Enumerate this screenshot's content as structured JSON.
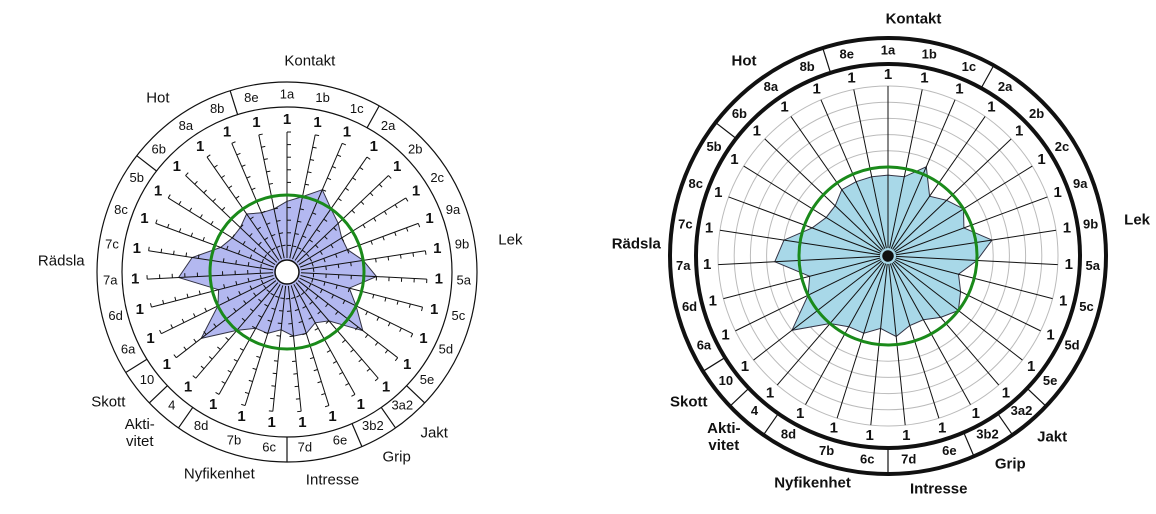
{
  "chart_data": [
    {
      "type": "radar",
      "rlim": [
        0,
        10
      ],
      "reference": 5,
      "color": "#b3b8f0",
      "reference_color": "#1a8a1a",
      "groups": [
        {
          "label": "Kontakt",
          "categories": [
            "8e",
            "1a",
            "1b",
            "1c"
          ]
        },
        {
          "label": "Lek",
          "categories": [
            "2a",
            "2b",
            "2c",
            "9a",
            "9b",
            "5a",
            "5c",
            "5d",
            "5e"
          ]
        },
        {
          "label": "Jakt",
          "categories": [
            "3a2"
          ]
        },
        {
          "label": "Grip",
          "categories": [
            "3b2"
          ]
        },
        {
          "label": "Intresse",
          "categories": [
            "6e",
            "7d"
          ]
        },
        {
          "label": "Nyfikenhet",
          "categories": [
            "6c",
            "7b",
            "8d"
          ]
        },
        {
          "label": "Akti-\nvitet",
          "categories": [
            "4"
          ]
        },
        {
          "label": "Skott",
          "categories": [
            "10"
          ]
        },
        {
          "label": "Rädsla",
          "categories": [
            "6a",
            "6d",
            "7a",
            "7c",
            "8c",
            "5b"
          ]
        },
        {
          "label": "Hot",
          "categories": [
            "6b",
            "8a",
            "8b"
          ]
        }
      ],
      "values": [
        4,
        4.5,
        5,
        6,
        5,
        4.5,
        4,
        4,
        5,
        6,
        4,
        5,
        6.5,
        4,
        3.5,
        4,
        4,
        3.5,
        4,
        4,
        5,
        7.5,
        5,
        4.5,
        7.5,
        6.5,
        4.5,
        4,
        4,
        4.5,
        4
      ],
      "spoke_labels": [
        1,
        1,
        1,
        1,
        1,
        1,
        1,
        1,
        1,
        1,
        1,
        1,
        1,
        1,
        1,
        1,
        1,
        1,
        1,
        1,
        1,
        1,
        1,
        1,
        1,
        1,
        1,
        1,
        1,
        1,
        1
      ]
    },
    {
      "type": "radar",
      "rlim": [
        0,
        10
      ],
      "reference": 5,
      "color": "#a8d8e8",
      "reference_color": "#1a8a1a",
      "groups": [
        {
          "label": "Kontakt",
          "categories": [
            "8e",
            "1a",
            "1b",
            "1c"
          ]
        },
        {
          "label": "Lek",
          "categories": [
            "2a",
            "2b",
            "2c",
            "9a",
            "9b",
            "5a",
            "5c",
            "5d",
            "5e"
          ]
        },
        {
          "label": "Jakt",
          "categories": [
            "3a2"
          ]
        },
        {
          "label": "Grip",
          "categories": [
            "3b2"
          ]
        },
        {
          "label": "Intresse",
          "categories": [
            "6e",
            "7d"
          ]
        },
        {
          "label": "Nyfikenhet",
          "categories": [
            "6c",
            "7b",
            "8d"
          ]
        },
        {
          "label": "Akti-\nvitet",
          "categories": [
            "4"
          ]
        },
        {
          "label": "Skott",
          "categories": [
            "10"
          ]
        },
        {
          "label": "Rädsla",
          "categories": [
            "6a",
            "6d",
            "7a",
            "7c",
            "8c",
            "5b"
          ]
        },
        {
          "label": "Hot",
          "categories": [
            "6b",
            "8a",
            "8b"
          ]
        }
      ],
      "values": [
        4.5,
        4.5,
        4.5,
        5.5,
        4,
        4.5,
        5,
        4.5,
        6,
        5,
        4,
        4.5,
        5,
        4.5,
        4,
        4,
        4.5,
        4,
        4.5,
        4.5,
        5,
        7,
        5,
        4.5,
        6.5,
        6,
        4.5,
        4,
        4,
        4.5,
        4.5
      ],
      "spoke_labels": [
        1,
        1,
        1,
        1,
        1,
        1,
        1,
        1,
        1,
        1,
        1,
        1,
        1,
        1,
        1,
        1,
        1,
        1,
        1,
        1,
        1,
        1,
        1,
        1,
        1,
        1,
        1,
        1,
        1,
        1,
        1
      ]
    }
  ]
}
